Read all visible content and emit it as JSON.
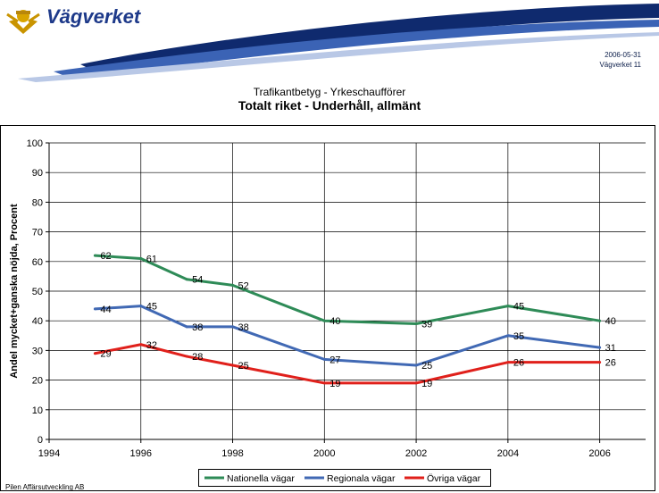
{
  "header": {
    "brand": "Vägverket",
    "date": "2006-05-31",
    "org_page": "Vägverket 11"
  },
  "footer": "Pilen Affärsutveckling AB",
  "chart_data": {
    "type": "line",
    "title": "Trafikantbetyg - Yrkeschaufförer",
    "subtitle": "Totalt riket - Underhåll, allmänt",
    "xlabel": "",
    "ylabel": "Andel mycket+ganska nöjda, Procent",
    "xlim": [
      1994,
      2007
    ],
    "ylim": [
      0,
      100
    ],
    "xticks": [
      1994,
      1996,
      1998,
      2000,
      2002,
      2004,
      2006
    ],
    "yticks": [
      0,
      10,
      20,
      30,
      40,
      50,
      60,
      70,
      80,
      90,
      100
    ],
    "x": [
      1995,
      1996,
      1997,
      1998,
      2000,
      2002,
      2004,
      2006
    ],
    "grid": true,
    "legend": "bottom",
    "series": [
      {
        "name": "Nationella vägar",
        "color": "#2e8b57",
        "values": [
          62,
          61,
          54,
          52,
          40,
          39,
          45,
          40
        ],
        "labels": [
          "62",
          "61",
          "54",
          "52",
          "40",
          "39",
          "45",
          "40"
        ]
      },
      {
        "name": "Regionala vägar",
        "color": "#4169b4",
        "values": [
          44,
          45,
          38,
          38,
          27,
          25,
          35,
          31
        ],
        "labels": [
          "44",
          "45",
          "38",
          "38",
          "27",
          "25",
          "35",
          "31"
        ]
      },
      {
        "name": "Övriga vägar",
        "color": "#e0201b",
        "values": [
          29,
          32,
          28,
          25,
          19,
          19,
          26,
          26
        ],
        "labels": [
          "29",
          "32",
          "28",
          "25",
          "19",
          "19",
          "26",
          "26"
        ]
      }
    ]
  }
}
